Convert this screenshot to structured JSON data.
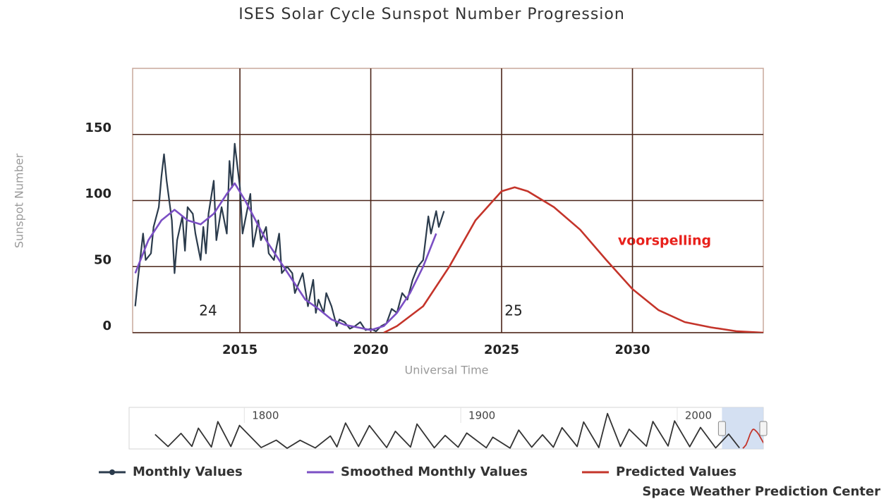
{
  "chart_data": [
    {
      "type": "line",
      "title": "ISES Solar Cycle Sunspot Number Progression",
      "ylabel": "Sunspot Number",
      "xlabel": "Universal Time",
      "xlim": [
        2010.9,
        2035
      ],
      "ylim": [
        0,
        200
      ],
      "xticks": [
        2015,
        2020,
        2025,
        2030
      ],
      "yticks": [
        0,
        50,
        100,
        150
      ],
      "grid": true,
      "annotations": [
        "24",
        "25",
        "voorspelling"
      ],
      "series": [
        {
          "name": "Monthly Values",
          "color": "#2b3b4c",
          "x": [
            2011.0,
            2011.1,
            2011.3,
            2011.4,
            2011.6,
            2011.7,
            2011.9,
            2012.0,
            2012.1,
            2012.2,
            2012.4,
            2012.5,
            2012.6,
            2012.8,
            2012.9,
            2013.0,
            2013.2,
            2013.3,
            2013.5,
            2013.6,
            2013.7,
            2013.8,
            2014.0,
            2014.1,
            2014.3,
            2014.5,
            2014.6,
            2014.7,
            2014.8,
            2015.0,
            2015.1,
            2015.3,
            2015.4,
            2015.5,
            2015.7,
            2015.8,
            2016.0,
            2016.1,
            2016.3,
            2016.5,
            2016.6,
            2016.8,
            2017.0,
            2017.1,
            2017.3,
            2017.4,
            2017.6,
            2017.8,
            2017.9,
            2018.0,
            2018.2,
            2018.3,
            2018.5,
            2018.7,
            2018.8,
            2019.0,
            2019.2,
            2019.4,
            2019.6,
            2019.8,
            2020.0,
            2020.2,
            2020.4,
            2020.6,
            2020.8,
            2021.0,
            2021.2,
            2021.4,
            2021.6,
            2021.8,
            2022.0,
            2022.2,
            2022.3,
            2022.5,
            2022.6,
            2022.8
          ],
          "values": [
            20,
            40,
            75,
            55,
            60,
            80,
            95,
            118,
            135,
            115,
            85,
            45,
            70,
            88,
            62,
            95,
            90,
            75,
            55,
            80,
            60,
            90,
            115,
            70,
            95,
            75,
            130,
            110,
            143,
            110,
            75,
            95,
            105,
            65,
            85,
            70,
            80,
            60,
            55,
            75,
            45,
            50,
            45,
            30,
            40,
            45,
            20,
            40,
            15,
            25,
            15,
            30,
            20,
            5,
            10,
            8,
            3,
            5,
            8,
            2,
            3,
            1,
            5,
            7,
            18,
            15,
            30,
            25,
            40,
            50,
            55,
            88,
            75,
            92,
            80,
            92
          ]
        },
        {
          "name": "Smoothed Monthly Values",
          "color": "#7b4fc4",
          "x": [
            2011.0,
            2011.5,
            2012.0,
            2012.5,
            2013.0,
            2013.5,
            2014.0,
            2014.5,
            2014.8,
            2015.2,
            2015.6,
            2016.0,
            2016.5,
            2017.0,
            2017.5,
            2018.0,
            2018.5,
            2019.0,
            2019.5,
            2020.0,
            2020.5,
            2021.0,
            2021.5,
            2022.0,
            2022.5
          ],
          "values": [
            45,
            70,
            85,
            93,
            85,
            82,
            90,
            105,
            113,
            100,
            85,
            70,
            55,
            40,
            25,
            18,
            10,
            6,
            4,
            2,
            5,
            15,
            30,
            50,
            75
          ]
        },
        {
          "name": "Predicted Values",
          "color": "#c4342a",
          "x": [
            2020.5,
            2021,
            2022,
            2023,
            2024,
            2025,
            2025.5,
            2026,
            2027,
            2028,
            2029,
            2030,
            2031,
            2032,
            2033,
            2034,
            2035
          ],
          "values": [
            0,
            5,
            20,
            50,
            85,
            107,
            110,
            107,
            95,
            78,
            55,
            33,
            17,
            8,
            4,
            1,
            0
          ]
        }
      ],
      "source": "Space Weather Prediction Center"
    },
    {
      "type": "line",
      "xlim": [
        1737,
        2030
      ],
      "ylim": [
        0,
        220
      ],
      "xticks": [
        1800,
        1900,
        2000
      ],
      "color": "#333333",
      "x": [
        1749,
        1755,
        1761,
        1766,
        1769,
        1775,
        1778,
        1784,
        1788,
        1798,
        1805,
        1810,
        1816,
        1823,
        1830,
        1833,
        1837,
        1843,
        1848,
        1856,
        1860,
        1867,
        1870,
        1878,
        1883,
        1889,
        1893,
        1902,
        1905,
        1913,
        1917,
        1923,
        1928,
        1933,
        1937,
        1944,
        1947,
        1954,
        1958,
        1964,
        1968,
        1976,
        1979,
        1986,
        1989,
        1996,
        2001,
        2008,
        2014,
        2019
      ],
      "values": [
        80,
        10,
        86,
        11,
        116,
        7,
        154,
        10,
        132,
        4,
        47,
        0,
        46,
        2,
        71,
        8,
        146,
        10,
        131,
        4,
        98,
        7,
        140,
        3,
        74,
        6,
        88,
        3,
        64,
        1,
        105,
        6,
        78,
        6,
        119,
        10,
        152,
        4,
        201,
        10,
        110,
        12,
        155,
        13,
        158,
        9,
        120,
        2,
        82,
        2
      ]
    }
  ]
}
